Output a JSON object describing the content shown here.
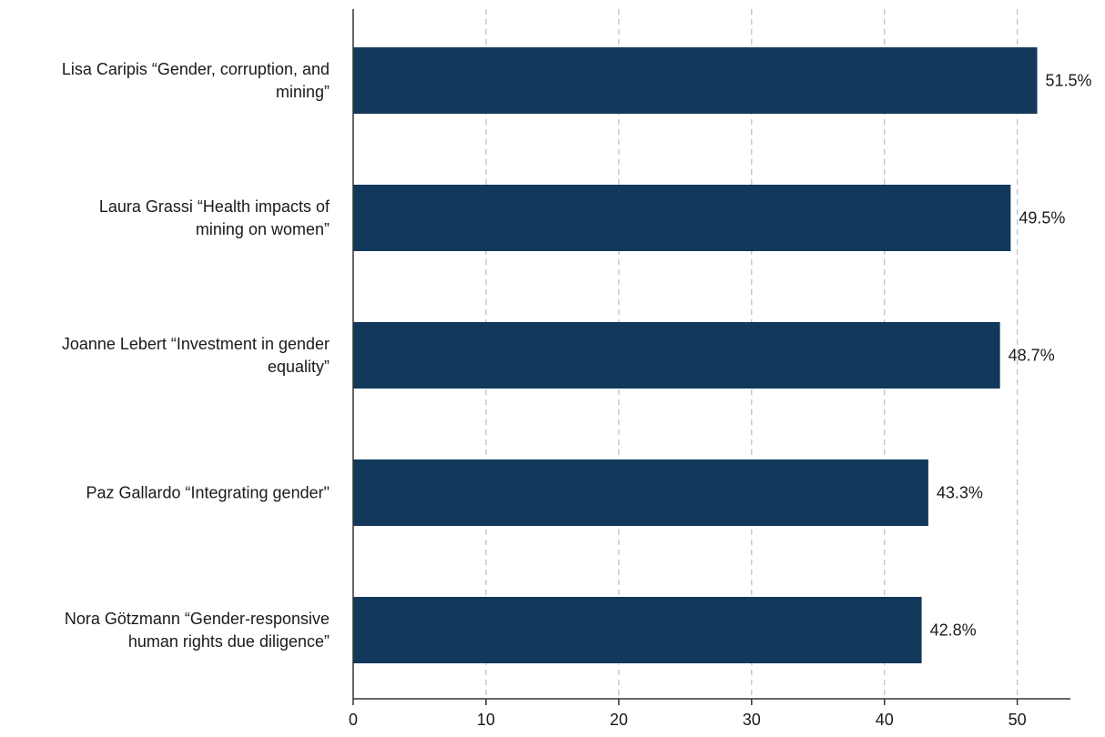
{
  "chart_data": {
    "type": "bar",
    "orientation": "horizontal",
    "title": "",
    "xlabel": "",
    "ylabel": "",
    "categories": [
      "Lisa Caripis “Gender, corruption, and mining”",
      "Laura Grassi “Health impacts of mining on women”",
      "Joanne Lebert “Investment in gender equality”",
      "Paz Gallardo “Integrating gender\"",
      "Nora Götzmann “Gender-responsive human rights due diligence”"
    ],
    "category_label_lines": [
      [
        "Lisa Caripis “Gender, corruption, and",
        "mining”"
      ],
      [
        "Laura Grassi “Health impacts of",
        "mining on women”"
      ],
      [
        "Joanne Lebert “Investment in gender",
        "equality”"
      ],
      [
        "Paz Gallardo “Integrating gender\""
      ],
      [
        "Nora Götzmann “Gender-responsive",
        "human rights due diligence”"
      ]
    ],
    "values": [
      51.5,
      49.5,
      48.7,
      43.3,
      42.8
    ],
    "value_labels": [
      "51.5%",
      "49.5%",
      "48.7%",
      "43.3%",
      "42.8%"
    ],
    "xlim": [
      0,
      54
    ],
    "x_ticks": [
      0,
      10,
      20,
      30,
      40,
      50
    ],
    "x_tick_labels": [
      "0",
      "10",
      "20",
      "30",
      "40",
      "50"
    ],
    "grid": "vertical dashed",
    "legend": "none",
    "bar_color": "#12385b",
    "grid_color": "#bdbdbd",
    "axis_color": "#333333"
  }
}
